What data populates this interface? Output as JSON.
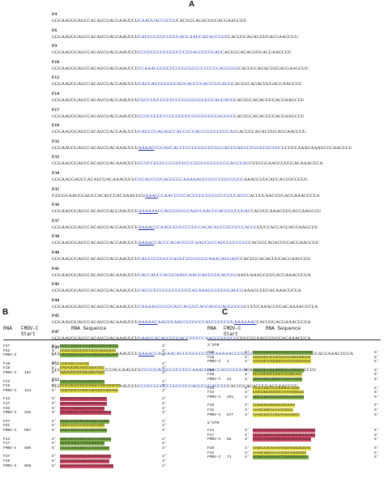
{
  "panel_a": {
    "letter": "A",
    "sequences": [
      {
        "name": "F4",
        "pre": "GGGAAUGGAUCCACAUCUACGAAUUCU",
        "blue": "GAAUUACCUCGU",
        "post": "CACUGCAGACUUGACGAAGCUU"
      },
      {
        "name": "F6",
        "pre": "GGGAAUGGAUCCACAUCUACGAAUUCU",
        "blue": "CAUCGGUUCGUUGAGCAAUCAUAGCGUU",
        "post": "CACUGCAGACUUGACGAAGCUU"
      },
      {
        "name": "F9",
        "pre": "GGGAAUGGAUCCACAUCUACGAAUUCU",
        "blue": "CCUUGGCUGGGUCUCUUACCUUGGAU",
        "post": "CACUGCAGACUUGACGAAGCUU"
      },
      {
        "name": "F10",
        "pre": "GGGAAUGGAUCCACAUCUACGAAUUCU",
        "blue": "CCAAACGCUCUCGCGCGGCCCCCCCCAGUGGU",
        "post": "CACUGCAGACUUGACGAAGCUU"
      },
      {
        "name": "F12",
        "pre": "GGGAAUGGAUCCACAUCUACGAAUUCU",
        "blue": "GAGGAUGGGUGGAUUAGCUGACCCUGAUG",
        "post": "CACUGCAGACUUGACGAAGCUU"
      },
      {
        "name": "F14",
        "pre": "GGGAAUGGAUCCACAUCUACGAAUUCU",
        "blue": "CUCCUUCGCUUCCCGGGGGGGUGGAGUAUG",
        "post": "CACUGCAGACUUGACGAAGCUU"
      },
      {
        "name": "F17",
        "pre": "GGGAAUGGAUCCACAUCUACGAAUUCU",
        "blue": "CCUCGUUCCCGCGUUUCGGGUGGGGAGGUG",
        "post": "CACUGCAGACUUGACGAAGCUU"
      },
      {
        "name": "F18",
        "pre": "GGGAAUGGAUCCACAUCUACGAAUUCU",
        "blue": "GAUCCGAGAUCCACCGCGACCCUUCUUGCAC",
        "post": "CACUGCAGACUUGACGAAGCUU"
      },
      {
        "name": "F32",
        "pre": "GGGAAGGGAUCCACAUCUACAAAUUCU",
        "blue": "CGGAUCAC",
        "under": "AAAAC",
        "blue2": "CUCCUCUGGUCGGGAGUUAGGCUGGUGUCUUCU",
        "post": "CUUCAAAGAAAUCGCAACUCU"
      },
      {
        "name": "F33",
        "pre": "GGGAAUGGAUCCACAUCUACAAAUUCU",
        "blue": "CCUCCUUCCCCGUUUCCCGGGGGGGGUGGAGCUAU",
        "post": "CUUCGGAAGCUUGGACAAACUCA"
      },
      {
        "name": "F34",
        "pre": "GGGAAGGAUCCACAUCUACAAAUUCU",
        "blue": "CUGAGCUUGAGGGGCAAAAAUGGUCCCUGCUGGG",
        "post": "AAAGCUUCAUCACUUCCUUG"
      },
      {
        "name": "F35",
        "pre": "F35GGGAAUGGAUCCACAUCUACAAAUUCU",
        "blue": "CGAACCUUCAC",
        "under": "AAAC",
        "blue2": "UGGCUGGUCCCUUCAUCC",
        "post": "ACUUCAACUUGACGAAACUCUA"
      },
      {
        "name": "F36",
        "pre": "GGGAAUGGAUCCACAUCUACGAAUUCU",
        "blue": "CCAGGGGGGUAUGCAAC",
        "under": "AAAAAA",
        "blue2": "GGAGUGUCUUAC",
        "post": "CACUGCAAACUUGACGAAGCUU"
      },
      {
        "name": "F37",
        "pre": "GGGAAGGGAUCCACAUCUACGAAUUCU",
        "blue": "CCAAUCU",
        "under": "AAAAC",
        "blue2": "UCCCUUCCACACAGCCUCCUCCACGG",
        "post": "UUCCACCAGUACGAAGCUU"
      },
      {
        "name": "F38",
        "pre": "GGGAAUGGAUCCACAUCUACGAAUUCU",
        "blue": "CACCCAGAGG",
        "under": "AAAAC",
        "blue2": "CUCAAUCGCCAUCGUCCGUC",
        "post": "CACUGCAGACUUGACGAAGCUU"
      },
      {
        "name": "F40",
        "pre": "GGGAAUGGAUCCACAUCUACGAAUUCU",
        "blue": "GAUCGCGGCCGAGUCUGCGGUUAAACAUGAUC",
        "post": "CACUGCAGACUUGACGAAGCUU"
      },
      {
        "name": "F41",
        "pre": "GGGAAUGGAUCCACAUCUACAAAUUCU",
        "blue": "CACCAUCCACUUAAUCAACUAUUGUUAUCGG",
        "post": "AAUUAAAGCUUGACGAAACUCUA"
      },
      {
        "name": "F42",
        "pre": "GGGAAUGGAUCCACAUCUACAAAUUCU",
        "blue": "CACCCUCGCGUUUCUCGAGAAAGGGGGGGAUCG",
        "post": "AAAGCUUGACAAACUCUA"
      },
      {
        "name": "F44",
        "pre": "GGGAAUGGAUCCACAUCUACAAAUUCU",
        "blue": "CAAAAGGCGUGAUCAGUUCAGGAGGUAGGGGGU",
        "post": "CCUUCAAACUUGACAAAACUCUA"
      },
      {
        "name": "F45",
        "pre": "GGGAAUGGAUCCACAUCUACAAAUUCU",
        "under": "AAAAAC",
        "blue": "AAGUUAACCUGGCCCAUCUUGCUU",
        "under2": "AAAAAAC",
        "post": "CACUUGACGAAACUCUA"
      },
      {
        "name": "F47",
        "pre": "GGGAAUGGAUCCACAUCUACAAAUUCU",
        "blue": "GAAGCACAGCUGGACCUUUCCAAGGGUGUCG",
        "post": "CUUCGGAAGCUUGGACAAACUCA"
      },
      {
        "name": "F49",
        "pre": "GGGAAUGGAUCCACAUCUACAAAUUCU",
        "blue": "CACGAACAGU",
        "under": "AAAAC",
        "blue2": "UGGGGCUUUAAAAACGUUGGGUUGCUGGUUA",
        "post": "CUUCAACUUGACGAAACUCUA"
      },
      {
        "name": "F51",
        "pre": "GGGAAAGGGAUCCACAUCUACGAAUUCU",
        "blue": "CCGUUAGGGCUCCUCCAAAGGAACCAGCCGGUA",
        "post": "CACUGCAGACUUGACGAAGCUU"
      },
      {
        "name": "F52",
        "pre": "GGGAAUGGAUCCACAUCUACGAAUUCU",
        "blue": "CCUUCGGGUCGUCCUCGAGUGUUAUCGU",
        "post": "CACUGCAGACUUGACGAAGCUU"
      }
    ]
  },
  "panel_b": {
    "letter": "B",
    "headers": {
      "rna": "RNA",
      "fmdv": "FMDV-C Start",
      "seq": "RNA Sequence"
    },
    "groups": [
      {
        "rows": [
          {
            "rna": "F47",
            "start": "",
            "seq": "GUCCAACUAAAACUUGCGGGAAGCGG",
            "hl": "g"
          },
          {
            "rna": "F52",
            "start": "",
            "seq": "CCUUCGGGUCGUCCUCGAGUGUUAU",
            "hl": "y"
          },
          {
            "rna": "FMDV-C",
            "start": "",
            "seq": "AGCAGGGAACUAAAAUUUAAAGCAGC",
            "hl": "g"
          }
        ]
      },
      {
        "rows": [
          {
            "rna": "F10",
            "start": "",
            "seq": "CCUCGGCAAGCGG",
            "hl": "y"
          },
          {
            "rna": "F18",
            "start": "",
            "seq": "GAGAUCUGCAGCCGGACUCC",
            "hl": "y"
          },
          {
            "rna": "FMDV-C",
            "start": "107",
            "seq": "GUGAUACUGCGUAUGCAGGG",
            "hl": "y"
          }
        ]
      },
      {
        "rows": [
          {
            "rna": "F12",
            "start": "",
            "seq": "CGCAAGGCGAGAUGGGUGGA",
            "hl": "g"
          },
          {
            "rna": "F18",
            "start": "",
            "seq": "GCCCUGACCUCCCGGUCCUGCUCUCUC",
            "hl": "y"
          },
          {
            "rna": "FMDV-C",
            "start": "124",
            "seq": "ACUCGCGCCAGGCAUCGUCCUUCAGG",
            "hl": "y"
          }
        ]
      },
      {
        "rows": [
          {
            "rna": "F14",
            "start": "",
            "seq": "UCCUCCCCGGGGGAUGGAGUA",
            "hl": "r"
          },
          {
            "rna": "F17",
            "start": "",
            "seq": "UCCGCGUUUCGGGUGGGGAGG",
            "hl": "r"
          },
          {
            "rna": "F33",
            "start": "",
            "seq": "UCCCCCGUUUCCCGGGGGGG",
            "hl": "r"
          },
          {
            "rna": "FMDV-C",
            "start": "232",
            "seq": "UCCGUCUCCCGGGGAGAGUAGAA",
            "hl": "r"
          }
        ]
      },
      {
        "rows": [
          {
            "rna": "F47",
            "start": "",
            "seq": "GCGGAAACUGUAGCUGCAUUGG",
            "hl": "g"
          },
          {
            "rna": "F52",
            "start": "",
            "seq": "CUUAAACCAAUCGAUCUUGG",
            "hl": "y"
          },
          {
            "rna": "FMDV-C",
            "start": "507",
            "seq": "GAGCCGCGAAAGCUUCGGGGG",
            "hl": "g"
          }
        ]
      },
      {
        "rows": [
          {
            "rna": "F14",
            "start": "",
            "seq": "GUCCUCCUUCGCUUCCCGGGGGG",
            "hl": "g"
          },
          {
            "rna": "F17",
            "start": "",
            "seq": "UCCUCGUUCCCGCGUUUCGG",
            "hl": "g"
          },
          {
            "rna": "FMDV-C",
            "start": "569",
            "seq": "CCCGCAGGUUUCCCCGGCGCGG",
            "hl": "g"
          }
        ]
      },
      {
        "rows": [
          {
            "rna": "F37",
            "start": "",
            "seq": "ACCAACGAUAACAGCAUUGGGGA",
            "hl": "r"
          },
          {
            "rna": "F45",
            "start": "",
            "seq": "UCCUCCGCAAUUAAAGCUUGCG",
            "hl": "r"
          },
          {
            "rna": "FMDV-C",
            "start": "859",
            "seq": "UAAUAAUAAAAAACUCCUAGGGUC",
            "hl": "r"
          }
        ]
      }
    ]
  },
  "panel_c": {
    "letter": "C",
    "headers": {
      "rna": "RNA",
      "fmdv": "FMDV-C Start",
      "seq": "RNA Sequence"
    },
    "sections": [
      {
        "label": "3'UTR",
        "groups": [
          {
            "rows": [
              {
                "rna": "F10",
                "start": "",
                "seq": "CUCCAAGACUACCCGGCCCCCCCAGGG",
                "hl": "g"
              },
              {
                "rna": "F18",
                "start": "",
                "seq": "GAGAUCCACCGCGACCCUUCUUGCAC",
                "hl": "y"
              },
              {
                "rna": "FMDV-C",
                "start": "1",
                "seq": "AAAAUCAAGGUUGCACGCAGGGAGAC",
                "hl": "y"
              }
            ]
          },
          {
            "rows": [
              {
                "rna": "F35",
                "start": "",
                "seq": "CUUCGGAAGCUUGGACAAACUCA",
                "hl": "g"
              },
              {
                "rna": "F38",
                "start": "",
                "seq": "GCCAUCGUCCGUCCACUGCAGA",
                "hl": "y"
              },
              {
                "rna": "FMDV-C",
                "start": "41",
                "seq": "CGGAAGCCUUGCCCGUCAAUGG",
                "hl": "g"
              }
            ]
          },
          {
            "rows": [
              {
                "rna": "F33",
                "start": "",
                "seq": "CCUCCUUCCCCGUUUCCCGGG",
                "hl": "y"
              },
              {
                "rna": "F34",
                "start": "",
                "seq": "GAGCUUGAGGGGCAAAAAUGGUC",
                "hl": "y"
              },
              {
                "rna": "FMDV-C",
                "start": "261",
                "seq": "UUCCCUGAGCGGAGCGAAACGGG",
                "hl": "g"
              }
            ]
          },
          {
            "rows": [
              {
                "rna": "F10",
                "start": "",
                "seq": "CCUUGGCUGGGUCUCUUAC",
                "hl": "y"
              },
              {
                "rna": "F42",
                "start": "",
                "seq": "AAAGCUUGACAAACUCUA",
                "hl": "y"
              },
              {
                "rna": "FMDV-C",
                "start": "677",
                "seq": "AAAGCUCCCAGGAAAUAGUCC",
                "hl": "y"
              }
            ]
          }
        ]
      },
      {
        "label": "5'UTR",
        "groups": [
          {
            "rows": [
              {
                "rna": "F14",
                "start": "",
                "seq": "UCCUCCUUCGCUUCCCGGGGGGGUGGAG",
                "hl": "r"
              },
              {
                "rna": "F17",
                "start": "",
                "seq": "CCUCGUUCCCGCGUUUCGGGUGGGGAGG",
                "hl": "r"
              },
              {
                "rna": "FMDV-C",
                "start": "58",
                "seq": "CCUCCCCGGGGGGUCCCGGGGGAGGG",
                "hl": "r"
              }
            ]
          },
          {
            "rows": [
              {
                "rna": "F36",
                "start": "",
                "seq": "CAUGCAACAAAAAAGGAGUGUCUUAC",
                "hl": "y"
              },
              {
                "rna": "F42",
                "start": "",
                "seq": "AAAGCUUGACAAACUCUAGGGGGG",
                "hl": "y"
              },
              {
                "rna": "FMDV-C",
                "start": "71",
                "seq": "GCUUAAAUAAAGCCUUGGGGGUAGC",
                "hl": "g"
              }
            ]
          }
        ]
      }
    ]
  }
}
